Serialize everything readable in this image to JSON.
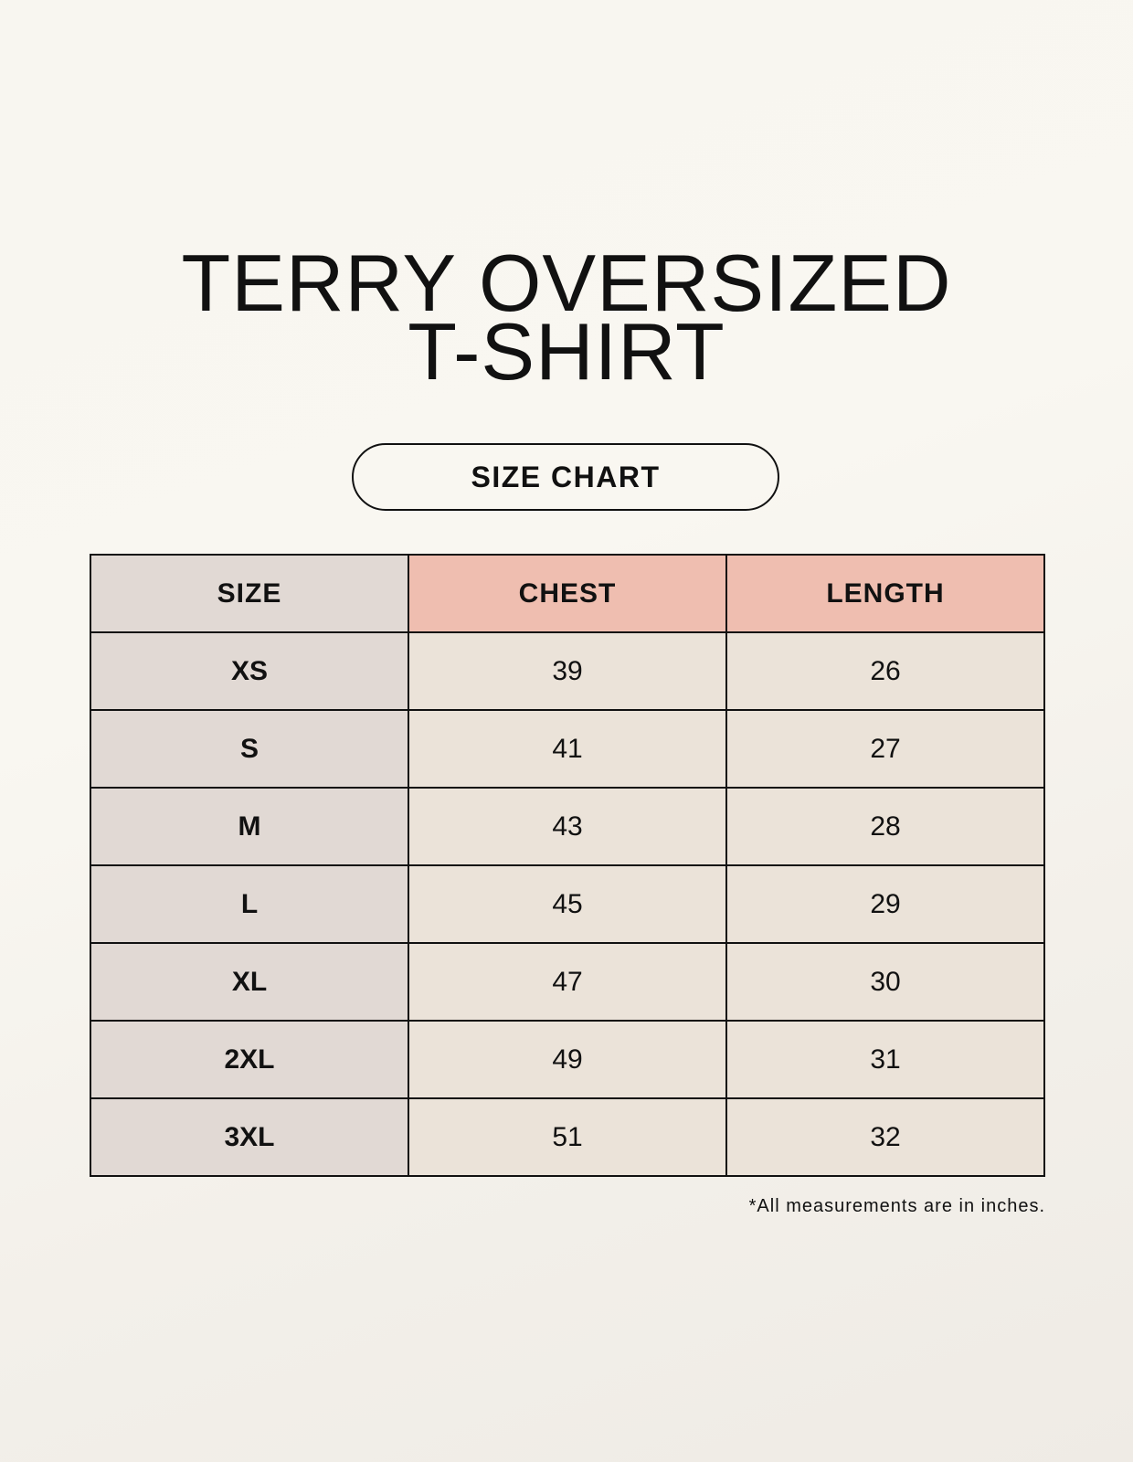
{
  "title": {
    "line1": "TERRY OVERSIZED",
    "line2": "T-SHIRT"
  },
  "badge": "SIZE CHART",
  "table": {
    "headers": [
      "SIZE",
      "CHEST",
      "LENGTH"
    ],
    "rows": [
      [
        "XS",
        "39",
        "26"
      ],
      [
        "S",
        "41",
        "27"
      ],
      [
        "M",
        "43",
        "28"
      ],
      [
        "L",
        "45",
        "29"
      ],
      [
        "XL",
        "47",
        "30"
      ],
      [
        "2XL",
        "49",
        "31"
      ],
      [
        "3XL",
        "51",
        "32"
      ]
    ]
  },
  "note": "*All measurements are in inches.",
  "colors": {
    "size_column": "#e1d9d4",
    "header_accent": "#efbeb0",
    "cell": "#ebe3d9"
  }
}
